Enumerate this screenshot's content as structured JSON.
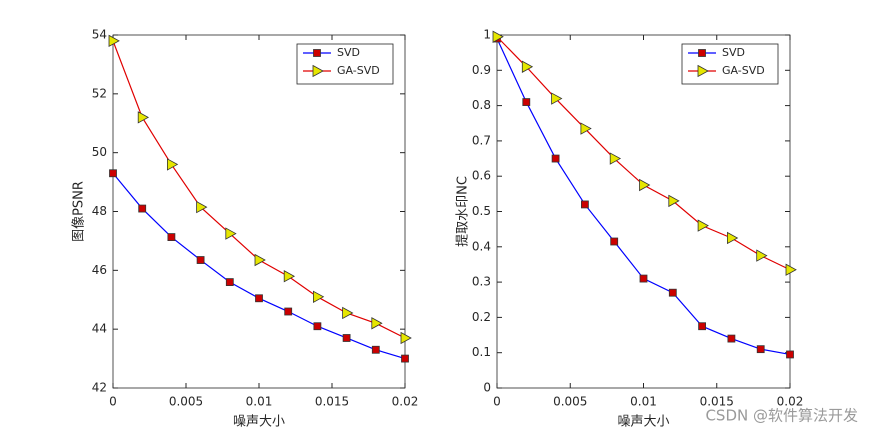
{
  "chart_data": [
    {
      "type": "line",
      "xlabel": "噪声大小",
      "ylabel": "图像PSNR",
      "x": [
        0,
        0.002,
        0.004,
        0.006,
        0.008,
        0.01,
        0.012,
        0.014,
        0.016,
        0.018,
        0.02
      ],
      "series": [
        {
          "name": "SVD",
          "color": "#0000ff",
          "marker_color": "#cc0000",
          "marker": "square",
          "values": [
            49.3,
            48.1,
            47.13,
            46.35,
            45.6,
            45.05,
            44.6,
            44.1,
            43.7,
            43.3,
            43.0
          ]
        },
        {
          "name": "GA-SVD",
          "color": "#e00000",
          "marker_color": "#e6e600",
          "marker": "triangle-right",
          "values": [
            53.8,
            51.2,
            49.6,
            48.15,
            47.25,
            46.35,
            45.8,
            45.1,
            44.55,
            44.2,
            43.7
          ]
        }
      ],
      "xlim": [
        0,
        0.02
      ],
      "xticks": [
        0,
        0.005,
        0.01,
        0.015,
        0.02
      ],
      "ylim": [
        42,
        54
      ],
      "yticks": [
        42,
        44,
        46,
        48,
        50,
        52,
        54
      ],
      "grid": false,
      "legend": "northeast"
    },
    {
      "type": "line",
      "xlabel": "噪声大小",
      "ylabel": "提取水印NC",
      "x": [
        0,
        0.002,
        0.004,
        0.006,
        0.008,
        0.01,
        0.012,
        0.014,
        0.016,
        0.018,
        0.02
      ],
      "series": [
        {
          "name": "SVD",
          "color": "#0000ff",
          "marker_color": "#cc0000",
          "marker": "square",
          "values": [
            0.99,
            0.81,
            0.65,
            0.52,
            0.415,
            0.31,
            0.27,
            0.175,
            0.14,
            0.11,
            0.095
          ]
        },
        {
          "name": "GA-SVD",
          "color": "#e00000",
          "marker_color": "#e6e600",
          "marker": "triangle-right",
          "values": [
            0.995,
            0.91,
            0.82,
            0.735,
            0.65,
            0.575,
            0.53,
            0.46,
            0.425,
            0.375,
            0.335
          ]
        }
      ],
      "xlim": [
        0,
        0.02
      ],
      "xticks": [
        0,
        0.005,
        0.01,
        0.015,
        0.02
      ],
      "ylim": [
        0,
        1
      ],
      "yticks": [
        0,
        0.1,
        0.2,
        0.3,
        0.4,
        0.5,
        0.6,
        0.7,
        0.8,
        0.9,
        1
      ],
      "grid": false,
      "legend": "northeast"
    }
  ],
  "watermark": "CSDN @软件算法开发"
}
